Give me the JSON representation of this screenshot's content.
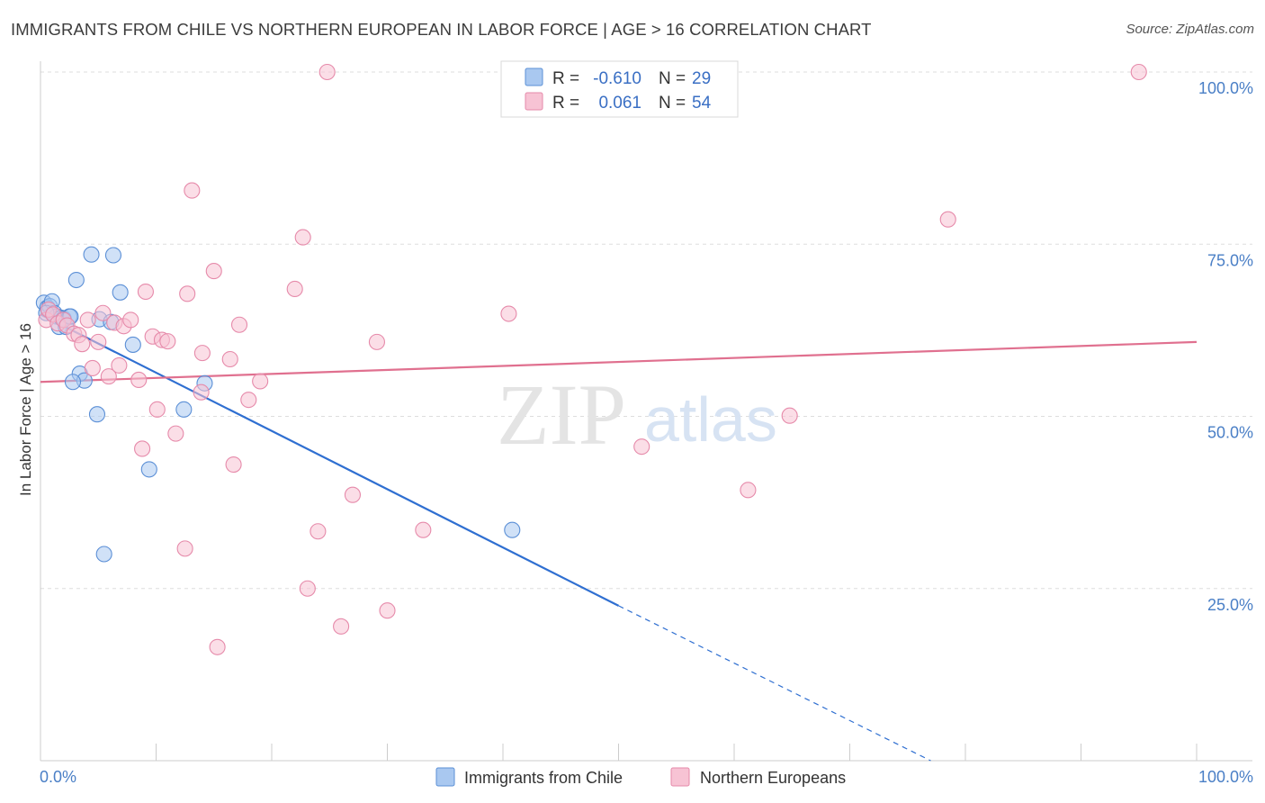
{
  "title": "IMMIGRANTS FROM CHILE VS NORTHERN EUROPEAN IN LABOR FORCE | AGE > 16 CORRELATION CHART",
  "source": "Source: ZipAtlas.com",
  "watermark": {
    "zip": "ZIP",
    "atlas": "atlas"
  },
  "colors": {
    "blue_fill": "#a9c8f0",
    "blue_stroke": "#5b8fd6",
    "blue_line": "#2f6fd1",
    "pink_fill": "#f7c3d4",
    "pink_stroke": "#e68aaa",
    "pink_line": "#e0708f",
    "tick_text": "#4a7fc6",
    "grid": "#dddddd"
  },
  "legend": {
    "r_label": "R =",
    "n_label": "N =",
    "items": [
      {
        "r": "-0.610",
        "n": "29"
      },
      {
        "r": "0.061",
        "n": "54"
      }
    ]
  },
  "chart_data": {
    "type": "scatter",
    "title": "IMMIGRANTS FROM CHILE VS NORTHERN EUROPEAN IN LABOR FORCE | AGE > 16 CORRELATION CHART",
    "xlabel": "",
    "ylabel": "In Labor Force | Age > 16",
    "xlim": [
      0,
      100
    ],
    "ylim": [
      0,
      100
    ],
    "x_tick_labels": {
      "min": "0.0%",
      "max": "100.0%"
    },
    "y_ticks": [
      {
        "value": 100,
        "label": "100.0%"
      },
      {
        "value": 75,
        "label": "75.0%"
      },
      {
        "value": 50,
        "label": "50.0%"
      },
      {
        "value": 25,
        "label": "25.0%"
      }
    ],
    "series": [
      {
        "name": "Immigrants from Chile",
        "r": -0.61,
        "n": 29,
        "points": [
          [
            0.3,
            66.5
          ],
          [
            0.6,
            65.8
          ],
          [
            0.8,
            66.0
          ],
          [
            1.0,
            66.7
          ],
          [
            1.2,
            65.0
          ],
          [
            1.4,
            64.5
          ],
          [
            1.6,
            63.0
          ],
          [
            1.8,
            64.3
          ],
          [
            2.0,
            64.2
          ],
          [
            2.2,
            63.0
          ],
          [
            2.5,
            64.5
          ],
          [
            2.6,
            64.5
          ],
          [
            3.1,
            69.8
          ],
          [
            3.4,
            56.2
          ],
          [
            3.8,
            55.2
          ],
          [
            2.8,
            55.0
          ],
          [
            4.4,
            73.5
          ],
          [
            4.9,
            50.3
          ],
          [
            5.1,
            64.1
          ],
          [
            5.5,
            30.0
          ],
          [
            6.1,
            63.7
          ],
          [
            6.3,
            73.4
          ],
          [
            6.9,
            68.0
          ],
          [
            8.0,
            60.4
          ],
          [
            9.4,
            42.3
          ],
          [
            12.4,
            51.0
          ],
          [
            14.2,
            54.8
          ],
          [
            40.8,
            33.5
          ],
          [
            0.5,
            65.0
          ]
        ],
        "trend": {
          "x0": 0,
          "y0": 64.8,
          "x1": 50,
          "y1": 22.5,
          "dashed_to_x": 77,
          "dashed_to_y": 0
        }
      },
      {
        "name": "Northern Europeans",
        "r": 0.061,
        "n": 54,
        "points": [
          [
            0.5,
            64.0
          ],
          [
            0.7,
            65.5
          ],
          [
            1.1,
            64.8
          ],
          [
            1.5,
            63.5
          ],
          [
            2.0,
            64.0
          ],
          [
            2.3,
            63.2
          ],
          [
            2.9,
            62.0
          ],
          [
            3.3,
            61.8
          ],
          [
            3.6,
            60.5
          ],
          [
            4.1,
            64.0
          ],
          [
            4.5,
            57.0
          ],
          [
            5.0,
            60.8
          ],
          [
            5.4,
            65.0
          ],
          [
            5.9,
            55.8
          ],
          [
            6.4,
            63.6
          ],
          [
            6.8,
            57.4
          ],
          [
            7.2,
            63.1
          ],
          [
            7.8,
            64.0
          ],
          [
            8.5,
            55.3
          ],
          [
            8.8,
            45.3
          ],
          [
            9.1,
            68.1
          ],
          [
            9.7,
            61.6
          ],
          [
            10.1,
            51.0
          ],
          [
            10.5,
            61.1
          ],
          [
            11.0,
            60.9
          ],
          [
            11.7,
            47.5
          ],
          [
            12.5,
            30.8
          ],
          [
            12.7,
            67.8
          ],
          [
            13.1,
            82.8
          ],
          [
            13.9,
            53.5
          ],
          [
            14.0,
            59.2
          ],
          [
            15.0,
            71.1
          ],
          [
            15.3,
            16.5
          ],
          [
            16.4,
            58.3
          ],
          [
            16.7,
            43.0
          ],
          [
            17.2,
            63.3
          ],
          [
            18.0,
            52.4
          ],
          [
            19.0,
            55.1
          ],
          [
            22.0,
            68.5
          ],
          [
            22.7,
            76.0
          ],
          [
            23.1,
            25.0
          ],
          [
            24.0,
            33.3
          ],
          [
            24.8,
            100.0
          ],
          [
            26.0,
            19.5
          ],
          [
            27.0,
            38.6
          ],
          [
            29.1,
            60.8
          ],
          [
            30.0,
            21.8
          ],
          [
            33.1,
            33.5
          ],
          [
            40.5,
            64.9
          ],
          [
            52.0,
            45.6
          ],
          [
            61.2,
            39.3
          ],
          [
            64.8,
            50.1
          ],
          [
            78.5,
            78.6
          ],
          [
            95.0,
            100.0
          ]
        ],
        "trend": {
          "x0": 0,
          "y0": 55.0,
          "x1": 100,
          "y1": 60.8
        }
      }
    ]
  }
}
